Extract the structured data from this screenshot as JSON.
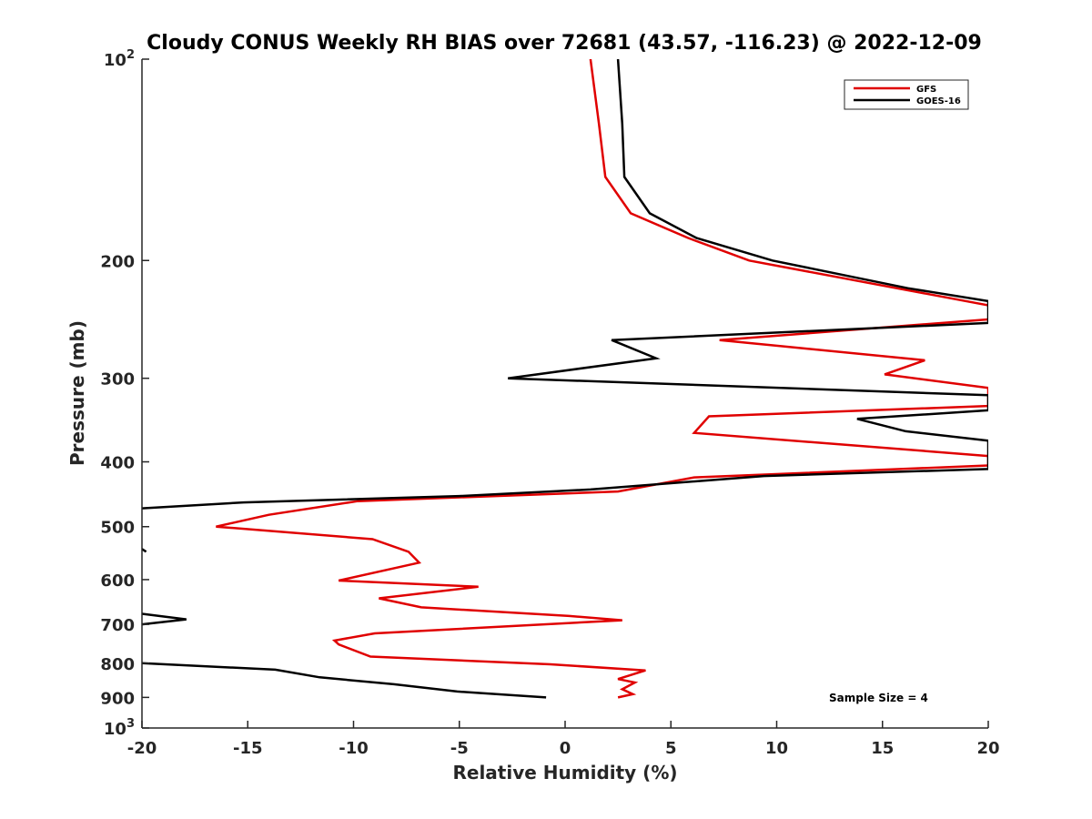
{
  "chart_data": {
    "type": "line",
    "title": "Cloudy CONUS Weekly RH BIAS over 72681 (43.57, -116.23) @ 2022-12-09",
    "xlabel": "Relative Humidity (%)",
    "ylabel": "Pressure (mb)",
    "xlim": [
      -20,
      20
    ],
    "ylim": [
      100,
      1000
    ],
    "y_scale": "log",
    "y_reversed": true,
    "grid": false,
    "legend_position": "top-right",
    "x_ticks": [
      "-20",
      "-15",
      "-10",
      "-5",
      "0",
      "5",
      "10",
      "15",
      "20"
    ],
    "y_ticks": [
      {
        "base": "10",
        "exp": "2",
        "value": 100
      },
      {
        "base": "200",
        "exp": "",
        "value": 200
      },
      {
        "base": "300",
        "exp": "",
        "value": 300
      },
      {
        "base": "400",
        "exp": "",
        "value": 400
      },
      {
        "base": "500",
        "exp": "",
        "value": 500
      },
      {
        "base": "600",
        "exp": "",
        "value": 600
      },
      {
        "base": "700",
        "exp": "",
        "value": 700
      },
      {
        "base": "800",
        "exp": "",
        "value": 800
      },
      {
        "base": "900",
        "exp": "",
        "value": 900
      },
      {
        "base": "10",
        "exp": "3",
        "value": 1000
      }
    ],
    "series": [
      {
        "name": "GFS",
        "color": "#e00000",
        "points": [
          [
            1.2,
            100
          ],
          [
            1.6,
            125
          ],
          [
            1.9,
            150
          ],
          [
            3.1,
            170
          ],
          [
            5.8,
            185
          ],
          [
            8.7,
            200
          ],
          [
            20.5,
            235
          ],
          [
            20.0,
            245
          ],
          [
            7.3,
            263
          ],
          [
            17.0,
            282
          ],
          [
            15.1,
            296
          ],
          [
            20.0,
            310
          ],
          [
            20.0,
            330
          ],
          [
            6.8,
            342
          ],
          [
            6.1,
            362
          ],
          [
            20.0,
            392
          ],
          [
            20.0,
            405
          ],
          [
            6.1,
            422
          ],
          [
            2.5,
            443
          ],
          [
            -9.8,
            458
          ],
          [
            -14.0,
            480
          ],
          [
            -16.5,
            500
          ],
          [
            -9.1,
            522
          ],
          [
            -7.4,
            545
          ],
          [
            -6.9,
            566
          ],
          [
            -10.7,
            602
          ],
          [
            -4.1,
            615
          ],
          [
            -8.8,
            640
          ],
          [
            -6.8,
            660
          ],
          [
            0.2,
            680
          ],
          [
            2.7,
            690
          ],
          [
            -9.0,
            722
          ],
          [
            -10.9,
            740
          ],
          [
            -10.7,
            750
          ],
          [
            -9.2,
            782
          ],
          [
            -0.7,
            803
          ],
          [
            3.8,
            820
          ],
          [
            2.5,
            845
          ],
          [
            3.3,
            855
          ],
          [
            2.7,
            875
          ],
          [
            3.2,
            890
          ],
          [
            2.5,
            900
          ]
        ]
      },
      {
        "name": "GOES-16",
        "color": "#000000",
        "points": [
          [
            2.5,
            100
          ],
          [
            2.7,
            125
          ],
          [
            2.8,
            150
          ],
          [
            4.0,
            170
          ],
          [
            6.2,
            185
          ],
          [
            9.8,
            200
          ],
          [
            16.2,
            220
          ],
          [
            20.0,
            230
          ],
          [
            20.0,
            248
          ],
          [
            2.2,
            263
          ],
          [
            4.3,
            280
          ],
          [
            -2.7,
            300
          ],
          [
            20.0,
            318
          ],
          [
            20.0,
            335
          ],
          [
            13.8,
            345
          ],
          [
            16.1,
            360
          ],
          [
            20.0,
            372
          ],
          [
            20.0,
            410
          ],
          [
            9.4,
            420
          ],
          [
            1.2,
            440
          ],
          [
            -5.0,
            450
          ],
          [
            -15.2,
            460
          ],
          [
            -20.3,
            470
          ],
          [
            null,
            null
          ],
          [
            -20.0,
            540
          ],
          [
            -19.8,
            545
          ],
          [
            null,
            null
          ],
          [
            -20.0,
            675
          ],
          [
            -17.9,
            688
          ],
          [
            -20.0,
            700
          ],
          [
            null,
            null
          ],
          [
            -20.0,
            800
          ],
          [
            -13.7,
            818
          ],
          [
            -11.6,
            840
          ],
          [
            -8.1,
            860
          ],
          [
            -5.1,
            882
          ],
          [
            -0.9,
            900
          ]
        ]
      }
    ],
    "annotation": "Sample Size = 4"
  }
}
